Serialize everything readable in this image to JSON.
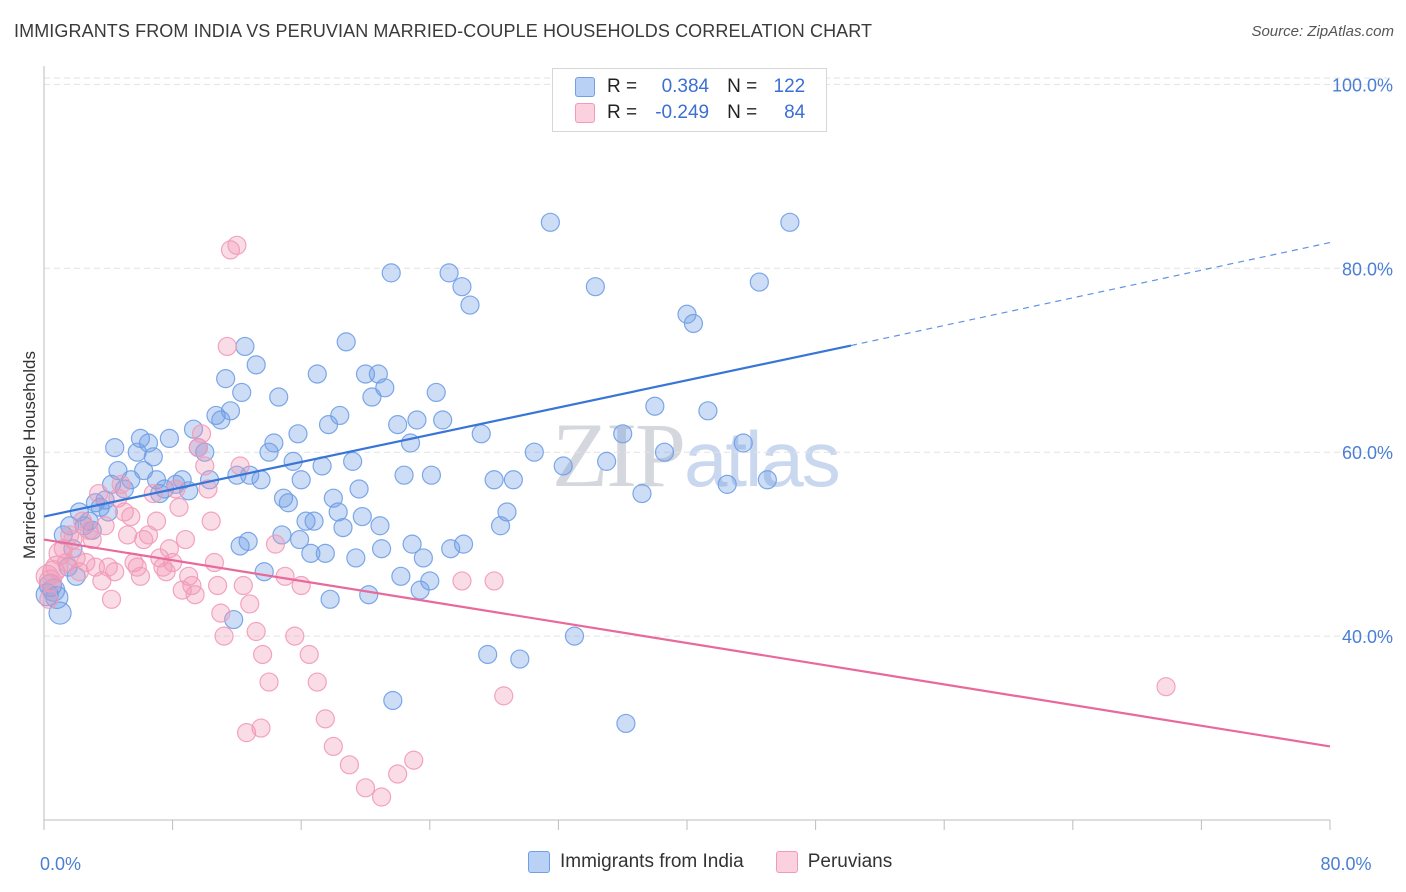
{
  "header": {
    "title": "IMMIGRANTS FROM INDIA VS PERUVIAN MARRIED-COUPLE HOUSEHOLDS CORRELATION CHART",
    "source": "Source: ZipAtlas.com"
  },
  "watermark": {
    "zip": "ZIP",
    "atlas": "atlas"
  },
  "legend_top": {
    "rows": [
      {
        "r_label": "R =",
        "r_value": "0.384",
        "n_label": "N =",
        "n_value": "122"
      },
      {
        "r_label": "R =",
        "r_value": "-0.249",
        "n_label": "N =",
        "n_value": "84"
      }
    ]
  },
  "legend_bottom": {
    "items": [
      {
        "label": "Immigrants from India"
      },
      {
        "label": "Peruvians"
      }
    ]
  },
  "chart_data": {
    "type": "scatter",
    "title": "IMMIGRANTS FROM INDIA VS PERUVIAN MARRIED-COUPLE HOUSEHOLDS CORRELATION CHART",
    "ylabel": "Married-couple Households",
    "xlabel": "",
    "xlim": [
      0,
      80
    ],
    "ylim": [
      20,
      102
    ],
    "x_ticks": [
      0,
      8,
      16,
      24,
      32,
      40,
      48,
      56,
      64,
      72,
      80
    ],
    "x_tick_labels": {
      "0": "0.0%",
      "80": "80.0%"
    },
    "y_ticks": [
      40,
      60,
      80,
      100
    ],
    "y_tick_labels": [
      "40.0%",
      "60.0%",
      "80.0%",
      "100.0%"
    ],
    "grid": true,
    "colors": {
      "india": "#6f9fe6",
      "india_line": "#3875d6",
      "peru": "#f29ab8",
      "peru_line": "#e8699a",
      "tick": "#4a7fd4"
    },
    "series": [
      {
        "name": "Immigrants from India",
        "r": 0.384,
        "n": 122,
        "trend": {
          "x0": 0,
          "y0": 53.0,
          "x1": 50.2,
          "y1": 71.6,
          "dash_x1": 80,
          "dash_y1": 82.8
        },
        "points": [
          [
            0.2,
            44.5
          ],
          [
            0.4,
            45.5
          ],
          [
            0.6,
            45.0
          ],
          [
            0.8,
            44.2
          ],
          [
            1.0,
            42.5
          ],
          [
            1.2,
            51.0
          ],
          [
            1.5,
            47.5
          ],
          [
            1.6,
            52.0
          ],
          [
            1.8,
            49.5
          ],
          [
            2.0,
            46.5
          ],
          [
            2.2,
            53.5
          ],
          [
            2.5,
            52.0
          ],
          [
            2.8,
            52.5
          ],
          [
            3.0,
            51.5
          ],
          [
            3.2,
            54.5
          ],
          [
            3.5,
            54.0
          ],
          [
            3.8,
            54.8
          ],
          [
            4.0,
            53.5
          ],
          [
            4.2,
            56.5
          ],
          [
            4.4,
            60.5
          ],
          [
            4.6,
            58.0
          ],
          [
            5.0,
            56.0
          ],
          [
            5.4,
            57.0
          ],
          [
            5.8,
            60.0
          ],
          [
            6.0,
            61.5
          ],
          [
            6.2,
            58.0
          ],
          [
            6.5,
            61.0
          ],
          [
            6.8,
            59.5
          ],
          [
            7.0,
            57.0
          ],
          [
            7.2,
            55.5
          ],
          [
            7.5,
            56.0
          ],
          [
            7.8,
            61.5
          ],
          [
            8.2,
            56.5
          ],
          [
            8.6,
            57.0
          ],
          [
            9.0,
            55.8
          ],
          [
            9.3,
            62.5
          ],
          [
            9.6,
            60.5
          ],
          [
            10.0,
            60.0
          ],
          [
            10.3,
            57.0
          ],
          [
            10.7,
            64.0
          ],
          [
            11.0,
            63.5
          ],
          [
            11.3,
            68.0
          ],
          [
            11.6,
            64.5
          ],
          [
            12.0,
            57.5
          ],
          [
            12.3,
            66.5
          ],
          [
            12.5,
            71.5
          ],
          [
            12.8,
            57.5
          ],
          [
            13.2,
            69.5
          ],
          [
            13.5,
            57.0
          ],
          [
            14.0,
            60.0
          ],
          [
            14.3,
            61.0
          ],
          [
            14.6,
            66.0
          ],
          [
            14.9,
            55.0
          ],
          [
            15.2,
            54.5
          ],
          [
            15.5,
            59.0
          ],
          [
            15.8,
            62.0
          ],
          [
            16.0,
            57.0
          ],
          [
            16.3,
            52.5
          ],
          [
            16.6,
            49.0
          ],
          [
            17.0,
            68.5
          ],
          [
            17.3,
            58.5
          ],
          [
            17.7,
            63.0
          ],
          [
            18.0,
            55.0
          ],
          [
            18.4,
            64.0
          ],
          [
            18.8,
            72.0
          ],
          [
            19.2,
            59.0
          ],
          [
            19.6,
            56.0
          ],
          [
            20.0,
            68.5
          ],
          [
            20.4,
            66.0
          ],
          [
            20.8,
            68.5
          ],
          [
            21.2,
            67.0
          ],
          [
            21.6,
            79.5
          ],
          [
            22.0,
            63.0
          ],
          [
            22.4,
            57.5
          ],
          [
            22.8,
            61.0
          ],
          [
            23.2,
            63.5
          ],
          [
            23.6,
            48.5
          ],
          [
            24.0,
            46.0
          ],
          [
            24.4,
            66.5
          ],
          [
            24.8,
            63.5
          ],
          [
            25.2,
            79.5
          ],
          [
            26.0,
            78.0
          ],
          [
            26.5,
            76.0
          ],
          [
            27.2,
            62.0
          ],
          [
            28.0,
            57.0
          ],
          [
            28.8,
            53.5
          ],
          [
            29.6,
            37.5
          ],
          [
            30.5,
            60.0
          ],
          [
            31.5,
            85.0
          ],
          [
            32.3,
            58.5
          ],
          [
            33.0,
            40.0
          ],
          [
            34.3,
            78.0
          ],
          [
            35.0,
            59.0
          ],
          [
            36.0,
            62.0
          ],
          [
            37.2,
            55.5
          ],
          [
            38.0,
            65.0
          ],
          [
            38.6,
            60.0
          ],
          [
            40.0,
            75.0
          ],
          [
            40.4,
            74.0
          ],
          [
            41.3,
            64.5
          ],
          [
            42.5,
            56.5
          ],
          [
            43.5,
            61.0
          ],
          [
            44.5,
            78.5
          ],
          [
            46.4,
            85.0
          ],
          [
            45.0,
            57.0
          ],
          [
            12.2,
            49.8
          ],
          [
            12.7,
            50.3
          ],
          [
            13.7,
            47.0
          ],
          [
            14.8,
            51.0
          ],
          [
            15.9,
            50.5
          ],
          [
            17.8,
            44.0
          ],
          [
            18.3,
            53.5
          ],
          [
            19.8,
            53.0
          ],
          [
            21.0,
            49.5
          ],
          [
            22.2,
            46.5
          ],
          [
            23.4,
            45.0
          ],
          [
            16.8,
            52.5
          ],
          [
            17.5,
            49.0
          ],
          [
            18.6,
            51.8
          ],
          [
            19.4,
            48.5
          ],
          [
            20.2,
            44.5
          ],
          [
            20.9,
            52.0
          ],
          [
            21.7,
            33.0
          ],
          [
            22.9,
            50.0
          ],
          [
            24.1,
            57.5
          ],
          [
            25.3,
            49.5
          ],
          [
            26.1,
            50.0
          ],
          [
            27.6,
            38.0
          ],
          [
            28.4,
            52.0
          ],
          [
            29.2,
            57.0
          ],
          [
            36.2,
            30.5
          ],
          [
            11.8,
            41.8
          ]
        ]
      },
      {
        "name": "Peruvians",
        "r": -0.249,
        "n": 84,
        "trend": {
          "x0": 0,
          "y0": 50.5,
          "x1": 80,
          "y1": 28.0
        },
        "points": [
          [
            0.2,
            46.5
          ],
          [
            0.4,
            46.0
          ],
          [
            0.6,
            47.0
          ],
          [
            0.8,
            47.5
          ],
          [
            1.0,
            49.0
          ],
          [
            1.2,
            49.5
          ],
          [
            1.4,
            48.0
          ],
          [
            1.6,
            51.0
          ],
          [
            1.8,
            50.5
          ],
          [
            2.0,
            48.5
          ],
          [
            2.2,
            47.0
          ],
          [
            2.4,
            52.5
          ],
          [
            2.6,
            48.0
          ],
          [
            2.8,
            51.5
          ],
          [
            3.0,
            50.5
          ],
          [
            3.2,
            47.5
          ],
          [
            3.4,
            55.5
          ],
          [
            3.6,
            46.0
          ],
          [
            3.8,
            52.0
          ],
          [
            4.0,
            47.5
          ],
          [
            4.2,
            44.0
          ],
          [
            4.4,
            47.0
          ],
          [
            4.6,
            55.0
          ],
          [
            4.8,
            56.5
          ],
          [
            5.0,
            53.5
          ],
          [
            5.2,
            51.0
          ],
          [
            5.4,
            53.0
          ],
          [
            5.6,
            48.0
          ],
          [
            5.8,
            47.5
          ],
          [
            6.0,
            46.5
          ],
          [
            6.2,
            50.5
          ],
          [
            6.5,
            51.0
          ],
          [
            6.8,
            55.5
          ],
          [
            7.0,
            52.5
          ],
          [
            7.2,
            48.5
          ],
          [
            7.4,
            47.5
          ],
          [
            7.6,
            47.0
          ],
          [
            7.8,
            49.5
          ],
          [
            8.0,
            48.0
          ],
          [
            8.2,
            56.0
          ],
          [
            8.4,
            54.0
          ],
          [
            8.6,
            45.0
          ],
          [
            8.8,
            50.5
          ],
          [
            9.0,
            46.5
          ],
          [
            9.2,
            45.5
          ],
          [
            9.4,
            44.5
          ],
          [
            9.6,
            60.5
          ],
          [
            9.8,
            62.0
          ],
          [
            10.0,
            58.5
          ],
          [
            10.2,
            56.0
          ],
          [
            10.4,
            52.5
          ],
          [
            10.6,
            48.0
          ],
          [
            10.8,
            45.5
          ],
          [
            11.0,
            42.5
          ],
          [
            11.2,
            40.0
          ],
          [
            11.4,
            71.5
          ],
          [
            11.6,
            82.0
          ],
          [
            12.0,
            82.5
          ],
          [
            12.2,
            58.5
          ],
          [
            12.4,
            45.5
          ],
          [
            12.8,
            43.5
          ],
          [
            13.2,
            40.5
          ],
          [
            13.6,
            38.0
          ],
          [
            14.0,
            35.0
          ],
          [
            14.4,
            50.0
          ],
          [
            15.0,
            46.5
          ],
          [
            15.6,
            40.0
          ],
          [
            16.0,
            45.5
          ],
          [
            16.5,
            38.0
          ],
          [
            17.0,
            35.0
          ],
          [
            17.5,
            31.0
          ],
          [
            18.0,
            28.0
          ],
          [
            19.0,
            26.0
          ],
          [
            20.0,
            23.5
          ],
          [
            21.0,
            22.5
          ],
          [
            22.0,
            25.0
          ],
          [
            23.0,
            26.5
          ],
          [
            26.0,
            46.0
          ],
          [
            28.0,
            46.0
          ],
          [
            28.6,
            33.5
          ],
          [
            13.5,
            30.0
          ],
          [
            12.6,
            29.5
          ],
          [
            69.8,
            34.5
          ],
          [
            0.3,
            44.0
          ]
        ]
      }
    ]
  }
}
